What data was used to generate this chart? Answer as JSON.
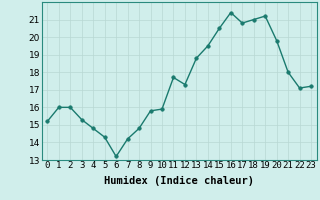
{
  "xlabel": "Humidex (Indice chaleur)",
  "x": [
    0,
    1,
    2,
    3,
    4,
    5,
    6,
    7,
    8,
    9,
    10,
    11,
    12,
    13,
    14,
    15,
    16,
    17,
    18,
    19,
    20,
    21,
    22,
    23
  ],
  "y": [
    15.2,
    16.0,
    16.0,
    15.3,
    14.8,
    14.3,
    13.2,
    14.2,
    14.8,
    15.8,
    15.9,
    17.7,
    17.3,
    18.8,
    19.5,
    20.5,
    21.4,
    20.8,
    21.0,
    21.2,
    19.8,
    18.0,
    17.1,
    17.2
  ],
  "line_color": "#1a7a6e",
  "marker": "o",
  "marker_size": 2.5,
  "bg_color": "#d0eeeb",
  "grid_color": "#b8d8d4",
  "ylim": [
    13,
    22
  ],
  "xlim": [
    -0.5,
    23.5
  ],
  "yticks": [
    13,
    14,
    15,
    16,
    17,
    18,
    19,
    20,
    21
  ],
  "xticks": [
    0,
    1,
    2,
    3,
    4,
    5,
    6,
    7,
    8,
    9,
    10,
    11,
    12,
    13,
    14,
    15,
    16,
    17,
    18,
    19,
    20,
    21,
    22,
    23
  ],
  "xtick_labels": [
    "0",
    "1",
    "2",
    "3",
    "4",
    "5",
    "6",
    "7",
    "8",
    "9",
    "10",
    "11",
    "12",
    "13",
    "14",
    "15",
    "16",
    "17",
    "18",
    "19",
    "20",
    "21",
    "22",
    "23"
  ],
  "tick_fontsize": 6.5,
  "label_fontsize": 7.5,
  "line_width": 1.0
}
